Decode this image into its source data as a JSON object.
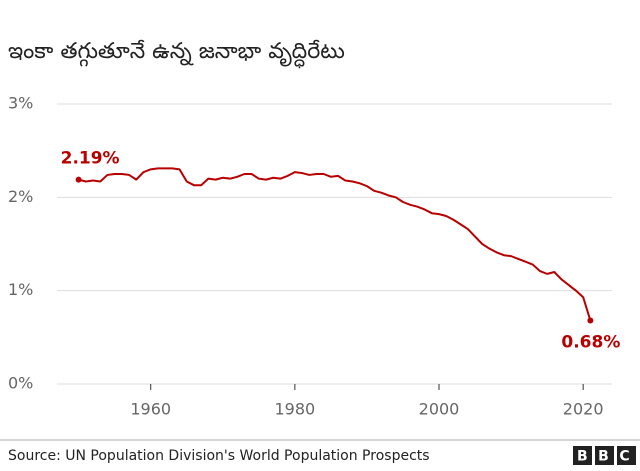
{
  "chart_data": {
    "type": "line",
    "title": "ఇంకా తగ్గుతూనే ఉన్న జనాభా వృద్ధిరేటు",
    "source": "Source: UN Population Division's World Population Prospects",
    "logo": "BBC",
    "color": "#b80000",
    "x": [
      1950,
      1951,
      1952,
      1953,
      1954,
      1955,
      1956,
      1957,
      1958,
      1959,
      1960,
      1961,
      1962,
      1963,
      1964,
      1965,
      1966,
      1967,
      1968,
      1969,
      1970,
      1971,
      1972,
      1973,
      1974,
      1975,
      1976,
      1977,
      1978,
      1979,
      1980,
      1981,
      1982,
      1983,
      1984,
      1985,
      1986,
      1987,
      1988,
      1989,
      1990,
      1991,
      1992,
      1993,
      1994,
      1995,
      1996,
      1997,
      1998,
      1999,
      2000,
      2001,
      2002,
      2003,
      2004,
      2005,
      2006,
      2007,
      2008,
      2009,
      2010,
      2011,
      2012,
      2013,
      2014,
      2015,
      2016,
      2017,
      2018,
      2019,
      2020,
      2021
    ],
    "values": [
      2.19,
      2.17,
      2.18,
      2.17,
      2.24,
      2.25,
      2.25,
      2.24,
      2.19,
      2.27,
      2.3,
      2.31,
      2.31,
      2.31,
      2.3,
      2.17,
      2.13,
      2.13,
      2.2,
      2.19,
      2.21,
      2.2,
      2.22,
      2.25,
      2.25,
      2.2,
      2.19,
      2.21,
      2.2,
      2.23,
      2.27,
      2.26,
      2.24,
      2.25,
      2.25,
      2.22,
      2.23,
      2.18,
      2.17,
      2.15,
      2.12,
      2.07,
      2.05,
      2.02,
      2.0,
      1.95,
      1.92,
      1.9,
      1.87,
      1.83,
      1.82,
      1.8,
      1.76,
      1.71,
      1.66,
      1.58,
      1.5,
      1.45,
      1.41,
      1.38,
      1.37,
      1.34,
      1.31,
      1.28,
      1.21,
      1.18,
      1.2,
      1.12,
      1.06,
      1.0,
      0.93,
      0.68
    ],
    "value_labels": [
      "2.19%",
      null,
      null,
      null,
      null,
      null,
      null,
      null,
      null,
      null,
      null,
      null,
      null,
      null,
      null,
      null,
      null,
      null,
      null,
      null,
      null,
      null,
      null,
      null,
      null,
      null,
      null,
      null,
      null,
      null,
      null,
      null,
      null,
      null,
      null,
      null,
      null,
      null,
      null,
      null,
      null,
      null,
      null,
      null,
      null,
      null,
      null,
      null,
      null,
      null,
      null,
      null,
      null,
      null,
      null,
      null,
      null,
      null,
      null,
      null,
      null,
      null,
      null,
      null,
      null,
      null,
      null,
      null,
      null,
      null,
      null,
      "0.68%"
    ],
    "xlim": [
      1947,
      2024
    ],
    "xticks": [
      1960,
      1980,
      2000,
      2020
    ],
    "ylim": [
      0,
      3
    ],
    "yticks": [
      {
        "value": 0,
        "label": "0%"
      },
      {
        "value": 1,
        "label": "1%"
      },
      {
        "value": 2,
        "label": "2%"
      },
      {
        "value": 3,
        "label": "3%"
      }
    ],
    "grid": true
  }
}
